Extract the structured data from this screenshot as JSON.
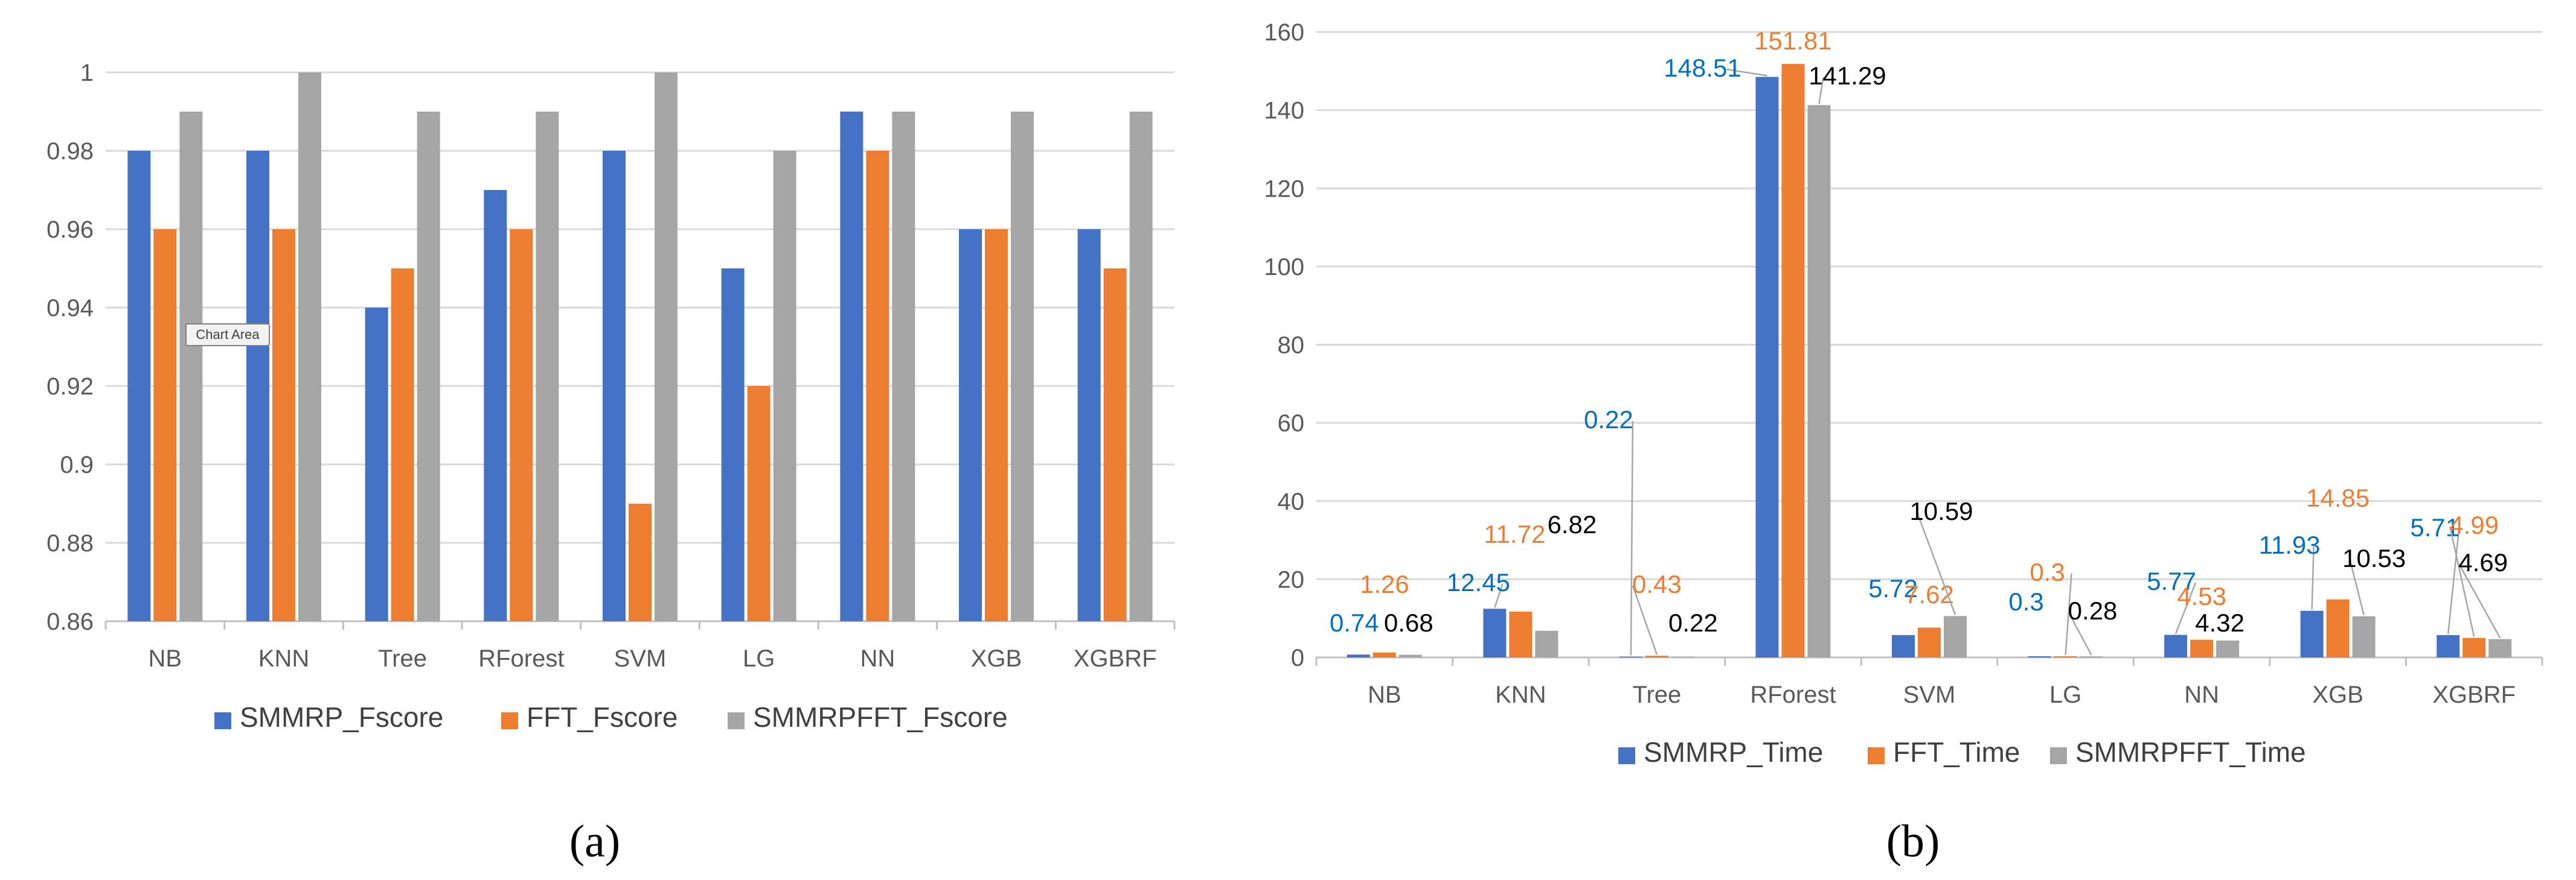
{
  "chart_data": [
    {
      "type": "bar",
      "panel_label": "(a)",
      "categories": [
        "NB",
        "KNN",
        "Tree",
        "RForest",
        "SVM",
        "LG",
        "NN",
        "XGB",
        "XGBRF"
      ],
      "series": [
        {
          "name": "SMMRP_Fscore",
          "color": "#4472C4",
          "values": [
            0.98,
            0.98,
            0.94,
            0.97,
            0.98,
            0.95,
            0.99,
            0.96,
            0.96
          ]
        },
        {
          "name": "FFT_Fscore",
          "color": "#ED7D31",
          "values": [
            0.96,
            0.96,
            0.95,
            0.96,
            0.89,
            0.92,
            0.98,
            0.96,
            0.95
          ]
        },
        {
          "name": "SMMRPFFT_Fscore",
          "color": "#A5A5A5",
          "values": [
            0.99,
            1.0,
            0.99,
            0.99,
            1.0,
            0.98,
            0.99,
            0.99,
            0.99
          ]
        }
      ],
      "yticks": [
        "0.86",
        "0.88",
        "0.9",
        "0.92",
        "0.94",
        "0.96",
        "0.98",
        "1"
      ],
      "ylim": [
        0.86,
        1.0
      ],
      "grid": true,
      "legend": "bottom",
      "tooltip": "Chart Area"
    },
    {
      "type": "bar",
      "panel_label": "(b)",
      "categories": [
        "NB",
        "KNN",
        "Tree",
        "RForest",
        "SVM",
        "LG",
        "NN",
        "XGB",
        "XGBRF"
      ],
      "series": [
        {
          "name": "SMMRP_Time",
          "color": "#4472C4",
          "label_color": "#0070C0",
          "values": [
            0.74,
            12.45,
            0.22,
            148.51,
            5.72,
            0.3,
            5.77,
            11.93,
            5.71
          ]
        },
        {
          "name": "FFT_Time",
          "color": "#ED7D31",
          "label_color": "#ED7D31",
          "values": [
            1.26,
            11.72,
            0.43,
            151.81,
            7.62,
            0.3,
            4.53,
            14.85,
            4.99
          ]
        },
        {
          "name": "SMMRPFFT_Time",
          "color": "#A5A5A5",
          "label_color": "#000000",
          "values": [
            0.68,
            6.82,
            0.22,
            141.29,
            10.59,
            0.28,
            4.32,
            10.53,
            4.69
          ]
        }
      ],
      "yticks": [
        "0",
        "20",
        "40",
        "60",
        "80",
        "100",
        "120",
        "140",
        "160"
      ],
      "ylim": [
        0,
        160
      ],
      "grid": true,
      "legend": "bottom",
      "data_labels": [
        [
          "0.74",
          "12.45",
          "0.22",
          "148.51",
          "5.72",
          "0.3",
          "5.77",
          "11.93",
          "5.71"
        ],
        [
          "1.26",
          "11.72",
          "0.43",
          "151.81",
          "7.62",
          "0.3",
          "4.53",
          "14.85",
          "4.99"
        ],
        [
          "0.68",
          "6.82",
          "0.22",
          "141.29",
          "10.59",
          "0.28",
          "4.32",
          "10.53",
          "4.69"
        ]
      ]
    }
  ]
}
